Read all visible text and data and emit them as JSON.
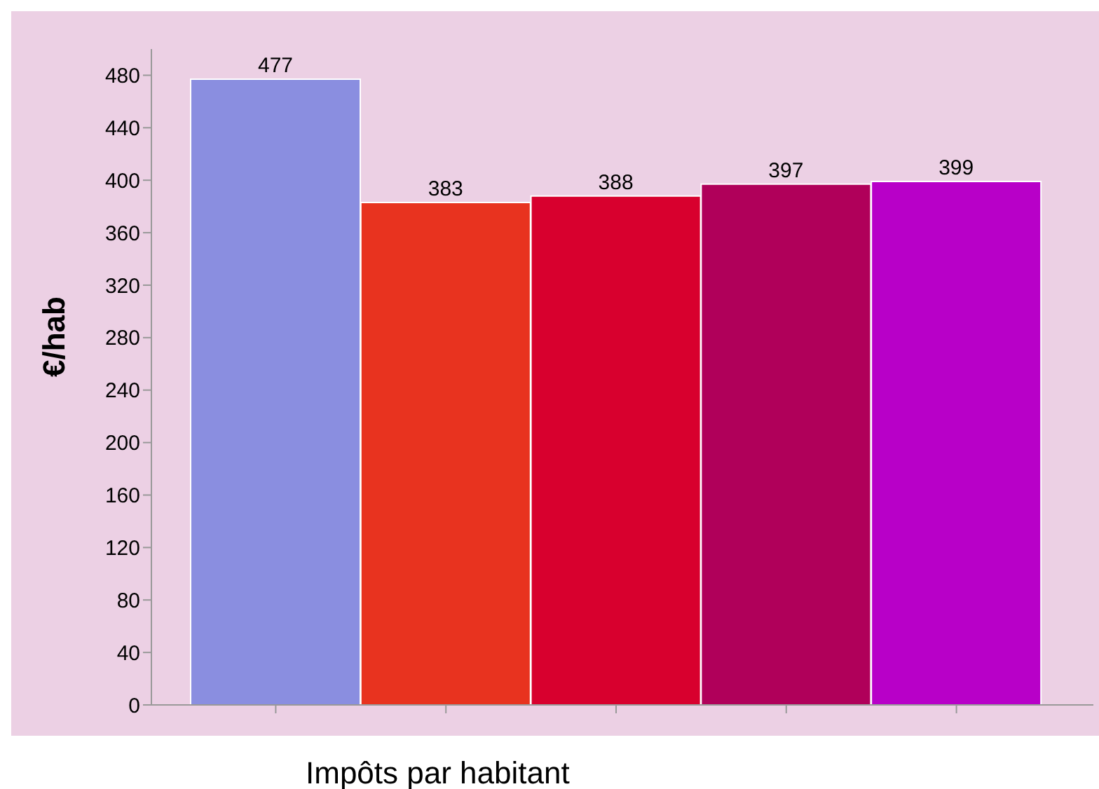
{
  "chart_data": {
    "type": "bar",
    "categories": [
      null,
      null,
      null,
      null,
      null
    ],
    "values": [
      477,
      383,
      388,
      397,
      399
    ],
    "colors": [
      "#8a8ee0",
      "#e8331f",
      "#d8002e",
      "#b0005a",
      "#b800c8"
    ],
    "ylabel": "€/hab",
    "xlabel": "Impôts par habitant",
    "ylim": [
      0,
      500
    ],
    "yticks": [
      0,
      40,
      80,
      120,
      160,
      200,
      240,
      280,
      320,
      360,
      400,
      440,
      480
    ],
    "data_labels": true,
    "grid": false
  }
}
